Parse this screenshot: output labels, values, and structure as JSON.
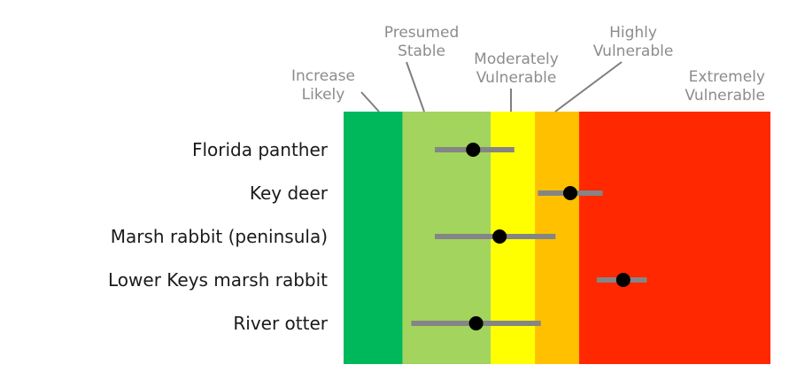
{
  "chart_data": {
    "type": "scatter",
    "title": "",
    "xlabel": "",
    "ylabel": "",
    "zones": [
      {
        "lines": [
          "Increase",
          "Likely"
        ],
        "color": "#00b85c",
        "from": 0,
        "to": 1
      },
      {
        "lines": [
          "Presumed",
          "Stable"
        ],
        "color": "#a2d45e",
        "from": 1,
        "to": 2.5
      },
      {
        "lines": [
          "Moderately",
          "Vulnerable"
        ],
        "color": "#ffff00",
        "from": 2.5,
        "to": 3.25
      },
      {
        "lines": [
          "Highly",
          "Vulnerable"
        ],
        "color": "#ffc000",
        "from": 3.25,
        "to": 4
      },
      {
        "lines": [
          "Extremely",
          "Vulnerable"
        ],
        "color": "#ff2800",
        "from": 4,
        "to": 7.25
      }
    ],
    "categories": [
      "Florida panther",
      "Key deer",
      "Marsh rabbit (peninsula)",
      "Lower Keys marsh rabbit",
      "River otter"
    ],
    "series": [
      {
        "estimate": 2.2,
        "low": 1.55,
        "high": 2.9
      },
      {
        "estimate": 3.85,
        "low": 3.3,
        "high": 4.4
      },
      {
        "estimate": 2.65,
        "low": 1.55,
        "high": 3.6
      },
      {
        "estimate": 4.75,
        "low": 4.3,
        "high": 5.15
      },
      {
        "estimate": 2.25,
        "low": 1.15,
        "high": 3.35
      }
    ],
    "xlim": [
      0,
      7.25
    ]
  }
}
